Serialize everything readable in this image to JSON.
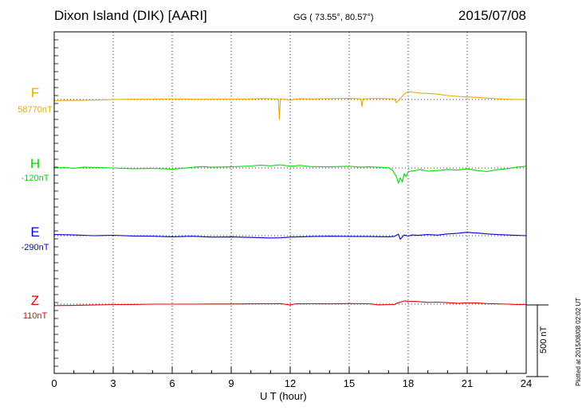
{
  "header": {
    "station": "Dixon Island (DIK)  [AARI]",
    "coords": "GG ( 73.55°,  80.57°)",
    "date": "2015/07/08"
  },
  "side": {
    "plotted": "Plotted at 2015/08/08 02:02 UT",
    "scale": "500 nT"
  },
  "colors": {
    "F": "#f0a800",
    "H": "#00dd00",
    "E": "#0000dd",
    "Z": "#ee0000"
  },
  "chart_data": {
    "type": "line",
    "title": "Dixon Island (DIK)  [AARI]",
    "xlabel": "U T (hour)",
    "ylabel": "",
    "xlim": [
      0,
      24
    ],
    "xticks": [
      0,
      3,
      6,
      9,
      12,
      15,
      18,
      21,
      24
    ],
    "scale_bar_nT": 500,
    "series": [
      {
        "name": "F",
        "baseline_label": "58770nT",
        "color": "#f0a800",
        "x": [
          0,
          0.5,
          1,
          2,
          3,
          4,
          5,
          6,
          7,
          8,
          9,
          10,
          10.5,
          11,
          11.4,
          11.45,
          11.5,
          11.6,
          12,
          12.2,
          12.5,
          13,
          14,
          15,
          15.6,
          15.65,
          15.7,
          16,
          16.5,
          17,
          17.3,
          17.4,
          17.6,
          17.8,
          18,
          18.3,
          18.6,
          19,
          19.5,
          20,
          20.5,
          21,
          21.5,
          22,
          22.5,
          23,
          23.5,
          24
        ],
        "values": [
          -10,
          -5,
          -6,
          -4,
          0,
          2,
          3,
          4,
          2,
          3,
          3,
          4,
          6,
          5,
          4,
          -140,
          3,
          5,
          -6,
          2,
          5,
          4,
          6,
          8,
          4,
          -50,
          4,
          6,
          7,
          5,
          4,
          -22,
          5,
          40,
          55,
          50,
          45,
          42,
          38,
          28,
          22,
          18,
          15,
          10,
          5,
          3,
          0,
          1
        ]
      },
      {
        "name": "H",
        "baseline_label": "-120nT",
        "color": "#00dd00",
        "x": [
          0,
          0.5,
          1,
          1.5,
          2,
          3,
          4,
          5,
          6,
          7,
          7.5,
          8,
          9,
          10,
          10.5,
          11,
          11.5,
          12,
          12.5,
          13,
          14,
          15,
          15.5,
          16,
          17,
          17.2,
          17.4,
          17.5,
          17.6,
          17.7,
          17.8,
          17.9,
          18,
          18.3,
          18.6,
          19,
          19.5,
          20,
          20.5,
          21,
          21.5,
          22,
          22.5,
          23,
          23.5,
          24
        ],
        "values": [
          0,
          4,
          -2,
          6,
          4,
          0,
          -5,
          -2,
          -8,
          4,
          10,
          5,
          8,
          14,
          20,
          15,
          22,
          12,
          18,
          10,
          8,
          12,
          6,
          8,
          2,
          -15,
          -60,
          -105,
          -70,
          -95,
          -40,
          -60,
          -25,
          -20,
          -10,
          -22,
          -18,
          -10,
          -15,
          -5,
          -18,
          -25,
          -12,
          -5,
          5,
          12
        ]
      },
      {
        "name": "E",
        "baseline_label": "-290nT",
        "color": "#0000dd",
        "x": [
          0,
          1,
          2,
          3,
          4,
          5,
          6,
          7,
          8,
          9,
          10,
          11,
          11.5,
          12,
          13,
          14,
          15,
          16,
          17,
          17.3,
          17.5,
          17.6,
          17.7,
          17.8,
          18,
          18.2,
          18.5,
          19,
          19.5,
          20,
          20.5,
          21,
          21.3,
          21.6,
          22,
          22.5,
          23,
          23.5,
          24
        ],
        "values": [
          8,
          5,
          0,
          3,
          -2,
          -4,
          -8,
          -4,
          -10,
          -9,
          -12,
          -16,
          -15,
          -10,
          -6,
          -4,
          -5,
          -6,
          -8,
          -5,
          10,
          -25,
          -10,
          5,
          -3,
          5,
          2,
          8,
          4,
          12,
          16,
          24,
          20,
          18,
          12,
          8,
          5,
          2,
          0
        ]
      },
      {
        "name": "Z",
        "baseline_label": "110nT",
        "color": "#ee0000",
        "x": [
          0,
          1,
          2,
          3,
          4,
          5,
          6,
          7,
          8,
          9,
          10,
          11,
          11.5,
          12,
          12.3,
          13,
          14,
          15,
          16,
          16.5,
          17,
          17.3,
          17.5,
          17.8,
          18,
          18.5,
          19,
          19.5,
          20,
          20.5,
          21,
          21.5,
          22,
          22.5,
          23,
          23.5,
          24
        ],
        "values": [
          -10,
          -9,
          -6,
          -3,
          -2,
          0,
          0,
          0,
          1,
          1,
          2,
          3,
          4,
          -6,
          2,
          3,
          2,
          4,
          3,
          -5,
          -3,
          -2,
          10,
          22,
          20,
          18,
          12,
          14,
          10,
          6,
          9,
          8,
          4,
          2,
          0,
          -2,
          -2
        ]
      }
    ]
  }
}
